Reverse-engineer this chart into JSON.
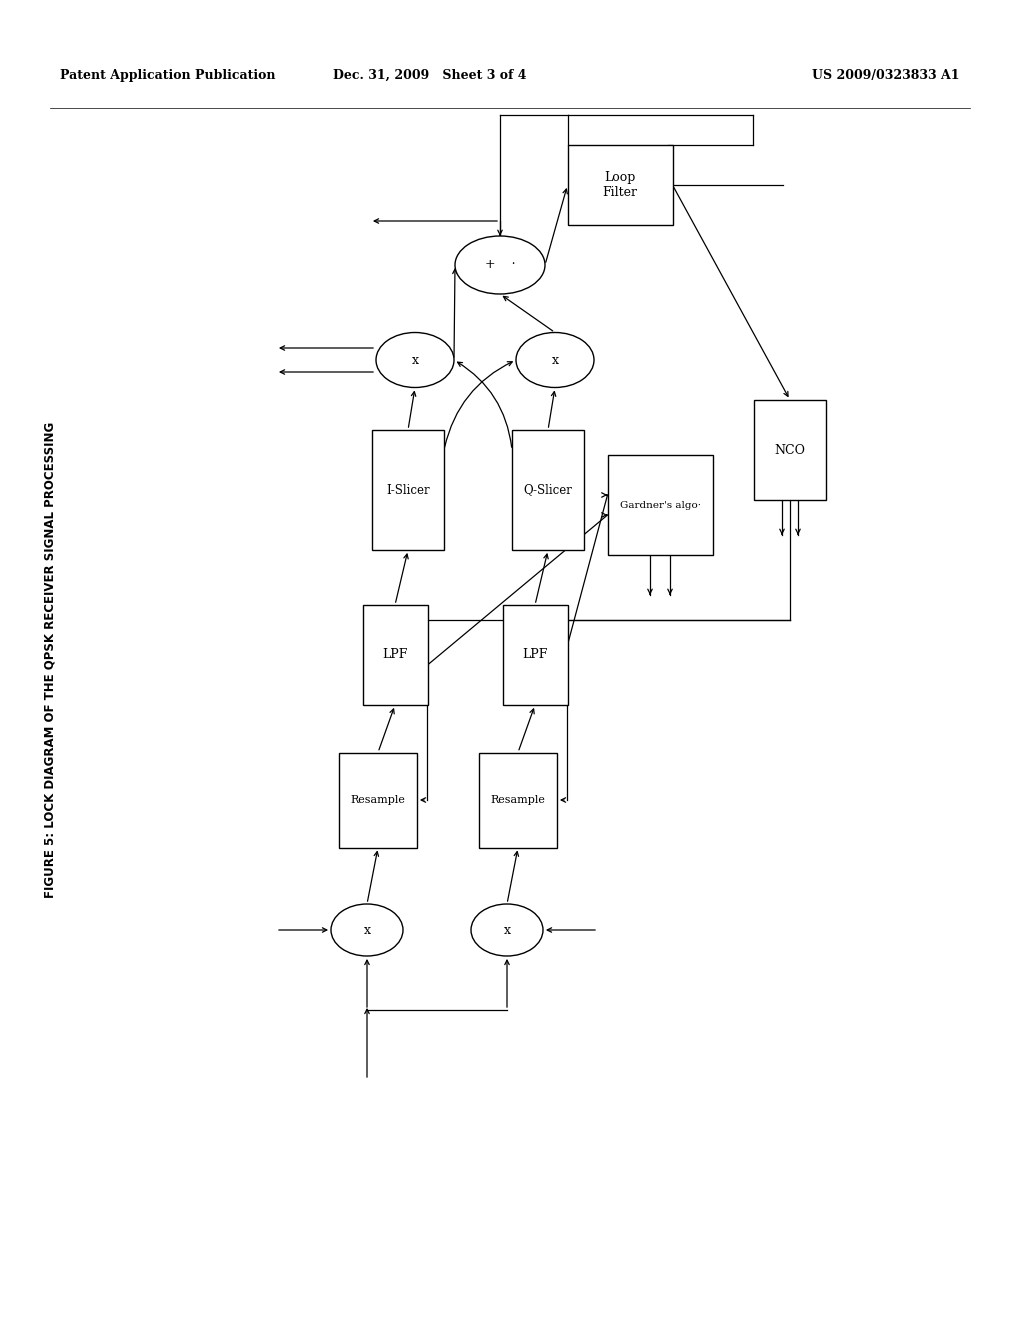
{
  "title": "FIGURE 5: LOCK DIAGRAM OF THE QPSK RECEIVER SIGNAL PROCESSING",
  "header_left": "Patent Application Publication",
  "header_mid": "Dec. 31, 2009   Sheet 3 of 4",
  "header_right": "US 2009/0323833 A1",
  "bg_color": "#ffffff"
}
